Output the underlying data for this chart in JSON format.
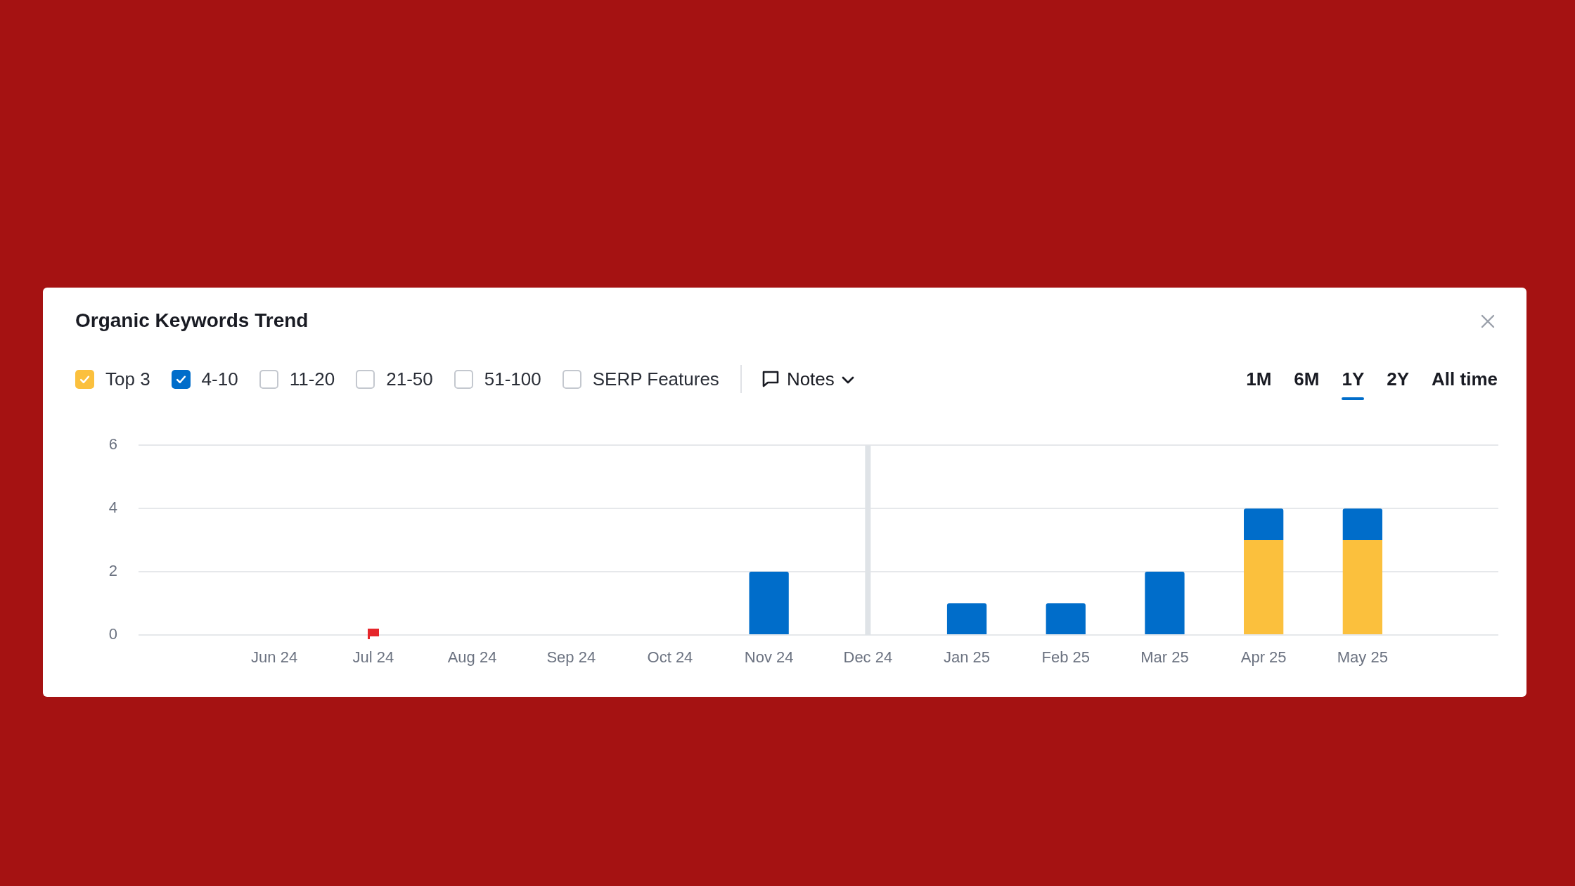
{
  "chart_data": {
    "type": "bar",
    "title": "Organic Keywords Trend",
    "categories": [
      "Jun 24",
      "Jul 24",
      "Aug 24",
      "Sep 24",
      "Oct 24",
      "Nov 24",
      "Dec 24",
      "Jan 25",
      "Feb 25",
      "Mar 25",
      "Apr 25",
      "May 25"
    ],
    "stacked": true,
    "series": [
      {
        "name": "Top 3",
        "color": "#fbc03d",
        "values": [
          0,
          0,
          0,
          0,
          0,
          0,
          0,
          0,
          0,
          0,
          3,
          3
        ]
      },
      {
        "name": "4-10",
        "color": "#006dca",
        "values": [
          0,
          0,
          0,
          0,
          0,
          2,
          0,
          1,
          1,
          2,
          1,
          1
        ]
      },
      {
        "name": "11-20",
        "values": [
          null,
          null,
          null,
          null,
          null,
          null,
          null,
          null,
          null,
          null,
          null,
          null
        ]
      },
      {
        "name": "21-50",
        "values": [
          null,
          null,
          null,
          null,
          null,
          null,
          null,
          null,
          null,
          null,
          null,
          null
        ]
      },
      {
        "name": "51-100",
        "values": [
          null,
          null,
          null,
          null,
          null,
          null,
          null,
          null,
          null,
          null,
          null,
          null
        ]
      },
      {
        "name": "SERP Features",
        "values": [
          null,
          null,
          null,
          null,
          null,
          null,
          null,
          null,
          null,
          null,
          null,
          null
        ]
      }
    ],
    "ylim": [
      0,
      6
    ],
    "yticks": [
      0,
      2,
      4,
      6
    ],
    "grid": "y",
    "legend": "top left",
    "ref_lines": [
      {
        "axis": "x",
        "value": "Dec 24",
        "color": "#dfe3e7"
      }
    ],
    "annotations": [
      "Notes",
      "1M",
      "6M",
      "1Y",
      "2Y",
      "All time"
    ]
  }
}
